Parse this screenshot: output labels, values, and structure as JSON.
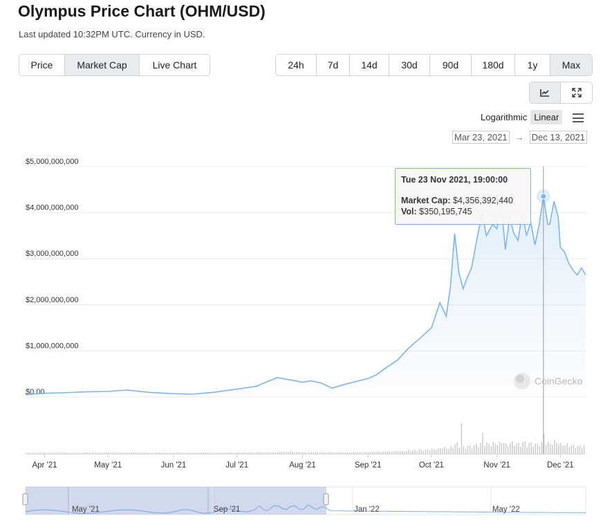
{
  "header": {
    "title": "Olympus Price Chart (OHM/USD)",
    "subtitle": "Last updated 10:32PM UTC. Currency in USD."
  },
  "view_tabs": [
    {
      "label": "Price",
      "active": false
    },
    {
      "label": "Market Cap",
      "active": true
    },
    {
      "label": "Live Chart",
      "active": false
    }
  ],
  "range_tabs": [
    {
      "label": "24h",
      "active": false
    },
    {
      "label": "7d",
      "active": false
    },
    {
      "label": "14d",
      "active": false
    },
    {
      "label": "30d",
      "active": false
    },
    {
      "label": "90d",
      "active": false
    },
    {
      "label": "180d",
      "active": false
    },
    {
      "label": "1y",
      "active": false
    },
    {
      "label": "Max",
      "active": true
    }
  ],
  "tools": [
    {
      "icon": "line-chart-icon",
      "active": true
    },
    {
      "icon": "fullscreen-icon",
      "active": false
    }
  ],
  "scale": {
    "logarithmic": "Logarithmic",
    "linear": "Linear",
    "active": "linear"
  },
  "date_range": {
    "from": "Mar 23, 2021",
    "to": "Dec 13, 2021"
  },
  "tooltip": {
    "date": "Tue 23 Nov 2021, 19:00:00",
    "market_cap_label": "Market Cap:",
    "market_cap_value": "$4,356,392,440",
    "vol_label": "Vol:",
    "vol_value": "$350,195,745"
  },
  "watermark": "CoinGecko",
  "colors": {
    "line": "#7cb5ec",
    "volume": "#c8c8c8",
    "navigator_mask": "rgba(102,133,194,0.3)"
  },
  "chart_data": {
    "type": "area",
    "title": "",
    "xlabel": "",
    "ylabel": "",
    "ylim": [
      0,
      5000000000
    ],
    "yticks": [
      {
        "value": 0,
        "label": "$0.00"
      },
      {
        "value": 1000000000,
        "label": "$1,000,000,000"
      },
      {
        "value": 2000000000,
        "label": "$2,000,000,000"
      },
      {
        "value": 3000000000,
        "label": "$3,000,000,000"
      },
      {
        "value": 4000000000,
        "label": "$4,000,000,000"
      },
      {
        "value": 5000000000,
        "label": "$5,000,000,000"
      }
    ],
    "xticks": [
      {
        "date": "2021-04-01",
        "label": "Apr '21"
      },
      {
        "date": "2021-05-01",
        "label": "May '21"
      },
      {
        "date": "2021-06-01",
        "label": "Jun '21"
      },
      {
        "date": "2021-07-01",
        "label": "Jul '21"
      },
      {
        "date": "2021-08-01",
        "label": "Aug '21"
      },
      {
        "date": "2021-09-01",
        "label": "Sep '21"
      },
      {
        "date": "2021-10-01",
        "label": "Oct '21"
      },
      {
        "date": "2021-11-01",
        "label": "Nov '21"
      },
      {
        "date": "2021-12-01",
        "label": "Dec '21"
      }
    ],
    "x_range": [
      "2021-03-23",
      "2021-12-13"
    ],
    "series": [
      {
        "x": [
          "2021-03-23",
          "2021-04-01",
          "2021-04-10",
          "2021-04-20",
          "2021-05-01",
          "2021-05-10",
          "2021-05-20",
          "2021-06-01",
          "2021-06-10",
          "2021-06-20",
          "2021-07-01",
          "2021-07-10",
          "2021-07-20",
          "2021-07-25",
          "2021-08-01",
          "2021-08-05",
          "2021-08-10",
          "2021-08-15",
          "2021-08-20",
          "2021-08-25",
          "2021-09-01",
          "2021-09-05",
          "2021-09-10",
          "2021-09-15",
          "2021-09-20",
          "2021-09-25",
          "2021-10-01",
          "2021-10-05",
          "2021-10-08",
          "2021-10-10",
          "2021-10-12",
          "2021-10-14",
          "2021-10-16",
          "2021-10-18",
          "2021-10-20",
          "2021-10-22",
          "2021-10-25",
          "2021-10-27",
          "2021-10-30",
          "2021-11-01",
          "2021-11-03",
          "2021-11-05",
          "2021-11-07",
          "2021-11-09",
          "2021-11-11",
          "2021-11-13",
          "2021-11-15",
          "2021-11-17",
          "2021-11-19",
          "2021-11-21",
          "2021-11-23",
          "2021-11-25",
          "2021-11-26",
          "2021-11-28",
          "2021-11-30",
          "2021-12-01",
          "2021-12-03",
          "2021-12-05",
          "2021-12-07",
          "2021-12-09",
          "2021-12-11",
          "2021-12-13"
        ],
        "values": [
          50000000,
          80000000,
          90000000,
          110000000,
          120000000,
          150000000,
          100000000,
          70000000,
          60000000,
          100000000,
          170000000,
          230000000,
          420000000,
          380000000,
          320000000,
          350000000,
          300000000,
          190000000,
          260000000,
          320000000,
          400000000,
          480000000,
          650000000,
          800000000,
          1050000000,
          1250000000,
          1500000000,
          2050000000,
          1750000000,
          2400000000,
          3550000000,
          2700000000,
          2350000000,
          2600000000,
          2800000000,
          3300000000,
          4000000000,
          3500000000,
          3750000000,
          3650000000,
          4200000000,
          3200000000,
          3900000000,
          3550000000,
          3400000000,
          4000000000,
          3500000000,
          3800000000,
          3300000000,
          3750000000,
          4356392440,
          3750000000,
          3750000000,
          4250000000,
          3900000000,
          3250000000,
          3150000000,
          2900000000,
          2750000000,
          2650000000,
          2800000000,
          2650000000
        ]
      }
    ],
    "highlighted_point": {
      "x": "2021-11-23",
      "value": 4356392440,
      "volume": 350195745
    }
  },
  "navigator": {
    "labels": [
      {
        "date": "2021-05-01",
        "label": "May '21"
      },
      {
        "date": "2021-09-01",
        "label": "Sep '21"
      },
      {
        "date": "2022-01-01",
        "label": "Jan '22"
      },
      {
        "date": "2022-05-01",
        "label": "May '22"
      }
    ]
  }
}
